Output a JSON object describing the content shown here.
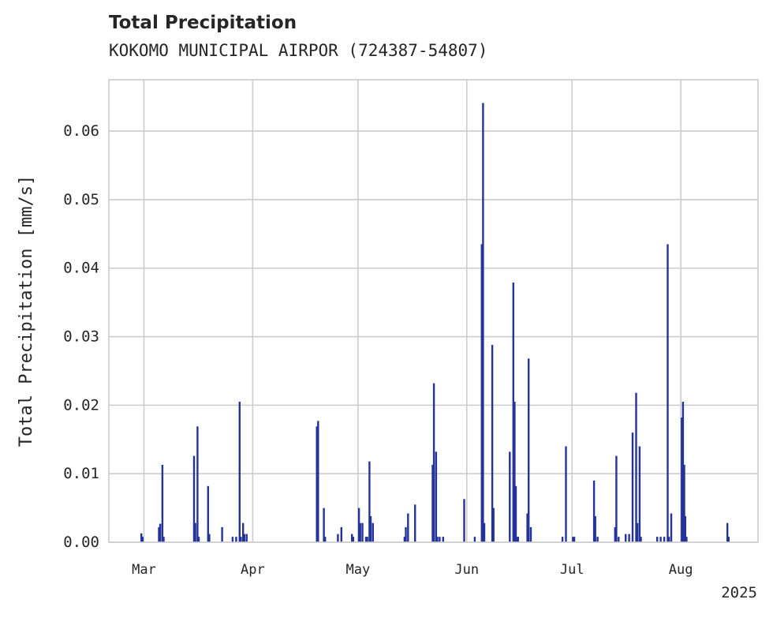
{
  "chart_data": {
    "type": "bar",
    "title": "Total Precipitation",
    "subtitle": "KOKOMO MUNICIPAL AIRPOR (724387-54807)",
    "xlabel": "",
    "ylabel": "Total Precipitation [mm/s]",
    "year_label": "2025",
    "xlim": [
      "2025-02-19",
      "2025-08-23"
    ],
    "ylim": [
      0,
      0.0675
    ],
    "yticks": [
      0.0,
      0.01,
      0.02,
      0.03,
      0.04,
      0.05,
      0.06
    ],
    "ytick_labels": [
      "0.00",
      "0.01",
      "0.02",
      "0.03",
      "0.04",
      "0.05",
      "0.06"
    ],
    "xticks": [
      "2025-03-01",
      "2025-04-01",
      "2025-05-01",
      "2025-06-01",
      "2025-07-01",
      "2025-08-01"
    ],
    "xtick_labels": [
      "Mar",
      "Apr",
      "May",
      "Jun",
      "Jul",
      "Aug"
    ],
    "grid": true,
    "bar_color": "#24339a",
    "points": [
      [
        "2025-02-28",
        0.0013
      ],
      [
        "2025-02-28",
        0.0008
      ],
      [
        "2025-03-05",
        0.0022
      ],
      [
        "2025-03-05",
        0.0027
      ],
      [
        "2025-03-06",
        0.0113
      ],
      [
        "2025-03-06",
        0.0008
      ],
      [
        "2025-03-15",
        0.0126
      ],
      [
        "2025-03-15",
        0.0028
      ],
      [
        "2025-03-16",
        0.0169
      ],
      [
        "2025-03-16",
        0.0008
      ],
      [
        "2025-03-19",
        0.0082
      ],
      [
        "2025-03-19",
        0.0012
      ],
      [
        "2025-03-23",
        0.0022
      ],
      [
        "2025-03-26",
        0.0008
      ],
      [
        "2025-03-27",
        0.0008
      ],
      [
        "2025-03-28",
        0.0205
      ],
      [
        "2025-03-28",
        0.0008
      ],
      [
        "2025-03-29",
        0.0028
      ],
      [
        "2025-03-29",
        0.0012
      ],
      [
        "2025-03-30",
        0.0012
      ],
      [
        "2025-04-19",
        0.0169
      ],
      [
        "2025-04-19",
        0.0177
      ],
      [
        "2025-04-21",
        0.005
      ],
      [
        "2025-04-21",
        0.0008
      ],
      [
        "2025-04-25",
        0.0012
      ],
      [
        "2025-04-26",
        0.0022
      ],
      [
        "2025-04-29",
        0.0012
      ],
      [
        "2025-04-29",
        0.0008
      ],
      [
        "2025-05-01",
        0.005
      ],
      [
        "2025-05-01",
        0.0028
      ],
      [
        "2025-05-02",
        0.0028
      ],
      [
        "2025-05-03",
        0.0008
      ],
      [
        "2025-05-03",
        0.0008
      ],
      [
        "2025-05-04",
        0.0118
      ],
      [
        "2025-05-04",
        0.0038
      ],
      [
        "2025-05-05",
        0.0028
      ],
      [
        "2025-05-14",
        0.0008
      ],
      [
        "2025-05-14",
        0.0022
      ],
      [
        "2025-05-15",
        0.0042
      ],
      [
        "2025-05-17",
        0.0055
      ],
      [
        "2025-05-22",
        0.0113
      ],
      [
        "2025-05-22",
        0.0232
      ],
      [
        "2025-05-23",
        0.0132
      ],
      [
        "2025-05-23",
        0.0008
      ],
      [
        "2025-05-24",
        0.0008
      ],
      [
        "2025-05-25",
        0.0008
      ],
      [
        "2025-05-31",
        0.0063
      ],
      [
        "2025-06-03",
        0.0008
      ],
      [
        "2025-06-05",
        0.0435
      ],
      [
        "2025-06-05",
        0.0641
      ],
      [
        "2025-06-05",
        0.0028
      ],
      [
        "2025-06-08",
        0.0288
      ],
      [
        "2025-06-08",
        0.005
      ],
      [
        "2025-06-13",
        0.0132
      ],
      [
        "2025-06-14",
        0.0379
      ],
      [
        "2025-06-14",
        0.0205
      ],
      [
        "2025-06-14",
        0.0082
      ],
      [
        "2025-06-15",
        0.0008
      ],
      [
        "2025-06-15",
        0.0008
      ],
      [
        "2025-06-18",
        0.0042
      ],
      [
        "2025-06-18",
        0.0268
      ],
      [
        "2025-06-19",
        0.0022
      ],
      [
        "2025-06-28",
        0.0008
      ],
      [
        "2025-06-29",
        0.014
      ],
      [
        "2025-07-01",
        0.0008
      ],
      [
        "2025-07-01",
        0.0008
      ],
      [
        "2025-07-07",
        0.009
      ],
      [
        "2025-07-07",
        0.0038
      ],
      [
        "2025-07-08",
        0.0008
      ],
      [
        "2025-07-13",
        0.0022
      ],
      [
        "2025-07-13",
        0.0126
      ],
      [
        "2025-07-14",
        0.0008
      ],
      [
        "2025-07-16",
        0.0012
      ],
      [
        "2025-07-17",
        0.0012
      ],
      [
        "2025-07-18",
        0.016
      ],
      [
        "2025-07-19",
        0.0218
      ],
      [
        "2025-07-19",
        0.0028
      ],
      [
        "2025-07-20",
        0.014
      ],
      [
        "2025-07-20",
        0.0008
      ],
      [
        "2025-07-25",
        0.0008
      ],
      [
        "2025-07-26",
        0.0008
      ],
      [
        "2025-07-27",
        0.0008
      ],
      [
        "2025-07-28",
        0.0435
      ],
      [
        "2025-07-28",
        0.0008
      ],
      [
        "2025-07-29",
        0.0042
      ],
      [
        "2025-08-01",
        0.0182
      ],
      [
        "2025-08-01",
        0.0205
      ],
      [
        "2025-08-01",
        0.0113
      ],
      [
        "2025-08-02",
        0.0038
      ],
      [
        "2025-08-02",
        0.0008
      ],
      [
        "2025-08-14",
        0.0028
      ],
      [
        "2025-08-14",
        0.0008
      ]
    ]
  }
}
